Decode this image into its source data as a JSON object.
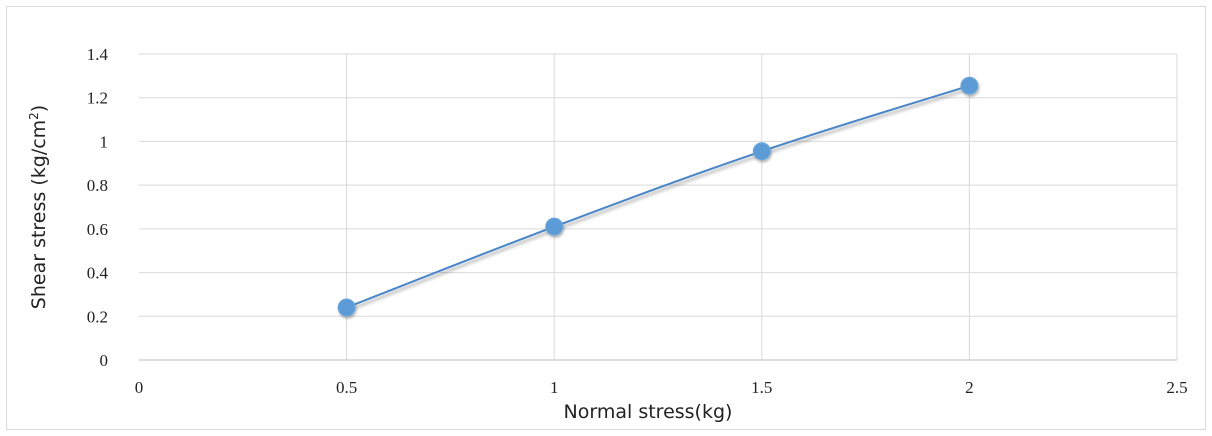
{
  "chart_data": {
    "type": "line",
    "title": "",
    "xlabel": "Normal stress(kg)",
    "ylabel": {
      "prefix": "Shear stress (kg/cm",
      "superscript": "2",
      "suffix": ")"
    },
    "xlim": [
      0,
      2.5
    ],
    "ylim": [
      0,
      1.4
    ],
    "x_ticks": [
      "0",
      "0.5",
      "1",
      "1.5",
      "2",
      "2.5"
    ],
    "y_ticks": [
      "0",
      "0.2",
      "0.4",
      "0.6",
      "0.8",
      "1",
      "1.2",
      "1.4"
    ],
    "grid": true,
    "legend": "none",
    "series": [
      {
        "x": [
          0.5,
          1,
          1.5,
          2
        ],
        "y": [
          0.24,
          0.61,
          0.955,
          1.255
        ],
        "line_color": "#4a86c8",
        "marker_color": "#5b9bd5"
      }
    ]
  }
}
